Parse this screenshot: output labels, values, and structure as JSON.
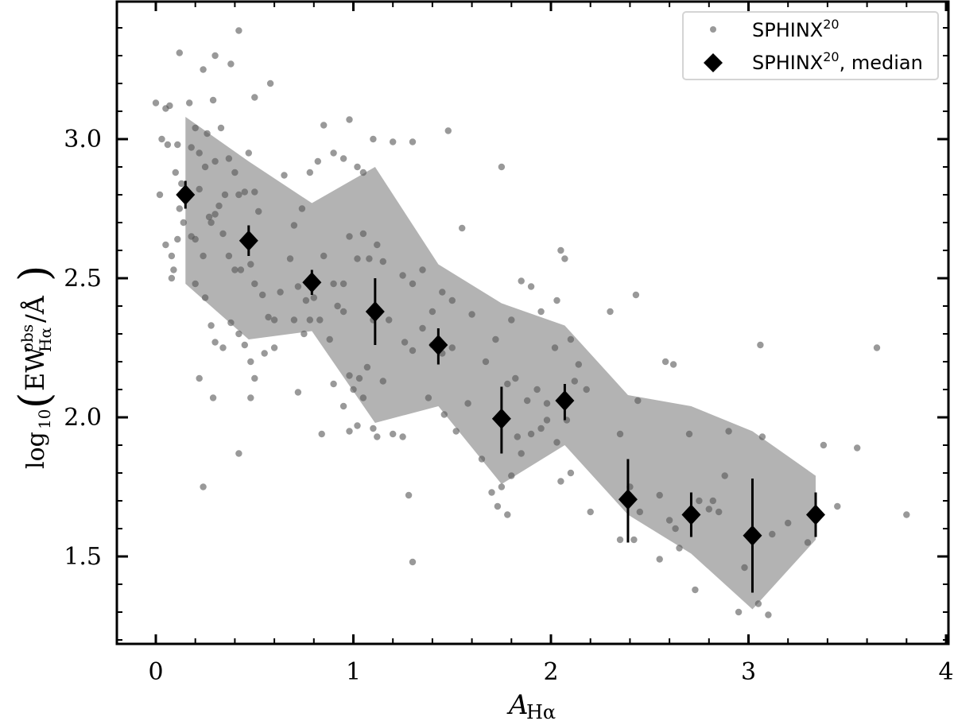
{
  "chart_data": {
    "type": "scatter",
    "title": "",
    "xlabel": "A_Hα",
    "ylabel": "log10(EW^obs_Hα / Å)",
    "xlim": [
      -0.2,
      4.0
    ],
    "ylim": [
      1.19,
      3.5
    ],
    "xticks": [
      0,
      1,
      2,
      3,
      4
    ],
    "xtick_labels": [
      "0",
      "1",
      "2",
      "3",
      "4"
    ],
    "yticks": [
      1.5,
      2.0,
      2.5,
      3.0
    ],
    "ytick_labels": [
      "1.5",
      "2.0",
      "2.5",
      "3.0"
    ],
    "grid": false,
    "legend_position": "upper right",
    "legend": [
      {
        "label": "SPHINX",
        "sup": "20",
        "suffix": "",
        "marker": "dot",
        "color": "#808080"
      },
      {
        "label": "SPHINX",
        "sup": "20",
        "suffix": ", median",
        "marker": "diamond",
        "color": "#000000"
      }
    ],
    "series": [
      {
        "name": "SPHINX20 median",
        "marker": "diamond",
        "color": "#000000",
        "x": [
          0.15,
          0.47,
          0.79,
          1.11,
          1.43,
          1.75,
          2.07,
          2.39,
          2.71,
          3.02,
          3.34
        ],
        "y": [
          2.8,
          2.635,
          2.485,
          2.38,
          2.26,
          1.995,
          2.06,
          1.705,
          1.65,
          1.575,
          1.65
        ],
        "yerr_low": [
          2.75,
          2.58,
          2.44,
          2.26,
          2.19,
          1.87,
          1.99,
          1.55,
          1.57,
          1.37,
          1.57
        ],
        "yerr_high": [
          2.85,
          2.69,
          2.53,
          2.5,
          2.32,
          2.11,
          2.12,
          1.85,
          1.73,
          1.78,
          1.73
        ]
      },
      {
        "name": "SPHINX20 percentile band",
        "type": "area",
        "color": "#b3b3b3",
        "x": [
          0.15,
          0.47,
          0.79,
          1.11,
          1.43,
          1.75,
          2.07,
          2.39,
          2.71,
          3.02,
          3.34
        ],
        "upper": [
          3.08,
          2.92,
          2.77,
          2.9,
          2.55,
          2.41,
          2.33,
          2.08,
          2.04,
          1.95,
          1.79
        ],
        "lower": [
          2.48,
          2.28,
          2.31,
          1.98,
          2.04,
          1.76,
          1.9,
          1.65,
          1.51,
          1.31,
          1.56
        ]
      },
      {
        "name": "SPHINX20",
        "marker": "dot",
        "color": "#808080",
        "points": [
          [
            0.0,
            3.13
          ],
          [
            0.05,
            3.11
          ],
          [
            0.03,
            3.0
          ],
          [
            0.07,
            3.12
          ],
          [
            0.12,
            3.31
          ],
          [
            0.17,
            3.13
          ],
          [
            0.3,
            3.3
          ],
          [
            0.38,
            3.27
          ],
          [
            0.42,
            3.39
          ],
          [
            0.58,
            3.2
          ],
          [
            0.5,
            3.15
          ],
          [
            0.29,
            3.14
          ],
          [
            0.24,
            3.25
          ],
          [
            0.02,
            2.8
          ],
          [
            0.06,
            2.98
          ],
          [
            0.08,
            2.5
          ],
          [
            0.09,
            2.53
          ],
          [
            0.1,
            2.88
          ],
          [
            0.11,
            2.98
          ],
          [
            0.12,
            2.75
          ],
          [
            0.13,
            2.84
          ],
          [
            0.14,
            2.7
          ],
          [
            0.05,
            2.62
          ],
          [
            0.08,
            2.58
          ],
          [
            0.11,
            2.64
          ],
          [
            0.18,
            2.97
          ],
          [
            0.2,
            3.04
          ],
          [
            0.22,
            2.95
          ],
          [
            0.25,
            2.9
          ],
          [
            0.26,
            3.02
          ],
          [
            0.3,
            2.92
          ],
          [
            0.33,
            3.04
          ],
          [
            0.37,
            2.93
          ],
          [
            0.4,
            2.88
          ],
          [
            0.22,
            2.82
          ],
          [
            0.27,
            2.72
          ],
          [
            0.32,
            2.76
          ],
          [
            0.35,
            2.8
          ],
          [
            0.42,
            2.8
          ],
          [
            0.45,
            2.81
          ],
          [
            0.47,
            2.95
          ],
          [
            0.5,
            2.81
          ],
          [
            0.52,
            2.74
          ],
          [
            0.18,
            2.65
          ],
          [
            0.2,
            2.64
          ],
          [
            0.24,
            2.58
          ],
          [
            0.28,
            2.7
          ],
          [
            0.3,
            2.73
          ],
          [
            0.34,
            2.66
          ],
          [
            0.37,
            2.58
          ],
          [
            0.4,
            2.53
          ],
          [
            0.43,
            2.53
          ],
          [
            0.48,
            2.55
          ],
          [
            0.5,
            2.48
          ],
          [
            0.54,
            2.44
          ],
          [
            0.57,
            2.36
          ],
          [
            0.6,
            2.35
          ],
          [
            0.63,
            2.45
          ],
          [
            0.2,
            2.48
          ],
          [
            0.25,
            2.43
          ],
          [
            0.28,
            2.33
          ],
          [
            0.3,
            2.27
          ],
          [
            0.34,
            2.25
          ],
          [
            0.38,
            2.34
          ],
          [
            0.42,
            2.3
          ],
          [
            0.45,
            2.26
          ],
          [
            0.48,
            2.2
          ],
          [
            0.5,
            2.14
          ],
          [
            0.55,
            2.23
          ],
          [
            0.6,
            2.25
          ],
          [
            0.22,
            2.14
          ],
          [
            0.29,
            2.07
          ],
          [
            0.48,
            2.07
          ],
          [
            0.24,
            1.75
          ],
          [
            0.42,
            1.87
          ],
          [
            0.65,
            2.87
          ],
          [
            0.7,
            2.69
          ],
          [
            0.74,
            2.75
          ],
          [
            0.78,
            2.88
          ],
          [
            0.82,
            2.92
          ],
          [
            0.85,
            3.05
          ],
          [
            0.9,
            2.95
          ],
          [
            0.95,
            2.93
          ],
          [
            0.98,
            3.07
          ],
          [
            1.02,
            2.9
          ],
          [
            1.05,
            2.88
          ],
          [
            1.1,
            3.0
          ],
          [
            1.2,
            2.99
          ],
          [
            1.3,
            2.99
          ],
          [
            1.48,
            3.03
          ],
          [
            0.68,
            2.57
          ],
          [
            0.72,
            2.47
          ],
          [
            0.76,
            2.42
          ],
          [
            0.8,
            2.43
          ],
          [
            0.85,
            2.58
          ],
          [
            0.9,
            2.48
          ],
          [
            0.95,
            2.48
          ],
          [
            0.98,
            2.65
          ],
          [
            1.02,
            2.57
          ],
          [
            1.05,
            2.66
          ],
          [
            1.08,
            2.57
          ],
          [
            1.12,
            2.62
          ],
          [
            1.15,
            2.56
          ],
          [
            0.7,
            2.35
          ],
          [
            0.75,
            2.3
          ],
          [
            0.78,
            2.35
          ],
          [
            0.83,
            2.35
          ],
          [
            0.88,
            2.28
          ],
          [
            0.92,
            2.4
          ],
          [
            0.95,
            2.38
          ],
          [
            0.98,
            2.15
          ],
          [
            1.0,
            2.1
          ],
          [
            1.03,
            2.14
          ],
          [
            1.07,
            2.18
          ],
          [
            1.1,
            2.35
          ],
          [
            1.15,
            2.13
          ],
          [
            1.18,
            2.35
          ],
          [
            0.72,
            2.09
          ],
          [
            0.84,
            1.94
          ],
          [
            0.9,
            2.12
          ],
          [
            0.95,
            2.04
          ],
          [
            0.98,
            1.95
          ],
          [
            1.02,
            1.97
          ],
          [
            1.05,
            2.07
          ],
          [
            1.1,
            1.96
          ],
          [
            1.12,
            1.93
          ],
          [
            1.2,
            1.94
          ],
          [
            1.25,
            1.93
          ],
          [
            1.28,
            1.72
          ],
          [
            1.3,
            1.48
          ],
          [
            1.25,
            2.51
          ],
          [
            1.3,
            2.48
          ],
          [
            1.35,
            2.53
          ],
          [
            1.4,
            2.38
          ],
          [
            1.45,
            2.45
          ],
          [
            1.5,
            2.42
          ],
          [
            1.55,
            2.68
          ],
          [
            1.6,
            2.37
          ],
          [
            1.26,
            2.27
          ],
          [
            1.3,
            2.24
          ],
          [
            1.35,
            2.32
          ],
          [
            1.4,
            2.26
          ],
          [
            1.45,
            2.23
          ],
          [
            1.5,
            2.25
          ],
          [
            1.38,
            2.07
          ],
          [
            1.46,
            2.01
          ],
          [
            1.52,
            1.95
          ],
          [
            1.58,
            2.05
          ],
          [
            1.67,
            2.2
          ],
          [
            1.72,
            2.28
          ],
          [
            1.75,
            2.9
          ],
          [
            1.8,
            2.35
          ],
          [
            1.85,
            2.49
          ],
          [
            1.9,
            2.47
          ],
          [
            1.95,
            2.38
          ],
          [
            2.03,
            2.42
          ],
          [
            2.07,
            2.57
          ],
          [
            2.05,
            2.6
          ],
          [
            1.78,
            2.12
          ],
          [
            1.82,
            2.14
          ],
          [
            1.88,
            2.06
          ],
          [
            1.93,
            2.1
          ],
          [
            1.98,
            2.05
          ],
          [
            2.02,
            2.25
          ],
          [
            2.1,
            2.28
          ],
          [
            2.14,
            2.19
          ],
          [
            2.18,
            2.1
          ],
          [
            1.7,
            1.73
          ],
          [
            1.75,
            1.75
          ],
          [
            1.8,
            1.79
          ],
          [
            1.83,
            1.93
          ],
          [
            1.85,
            1.87
          ],
          [
            1.9,
            1.94
          ],
          [
            1.95,
            1.96
          ],
          [
            1.98,
            1.99
          ],
          [
            2.03,
            1.91
          ],
          [
            2.05,
            1.77
          ],
          [
            2.08,
            1.99
          ],
          [
            2.1,
            1.8
          ],
          [
            1.73,
            1.68
          ],
          [
            1.78,
            1.65
          ],
          [
            2.2,
            1.66
          ],
          [
            2.35,
            1.56
          ],
          [
            1.65,
            1.85
          ],
          [
            2.12,
            2.13
          ],
          [
            2.43,
            2.44
          ],
          [
            2.44,
            2.06
          ],
          [
            2.3,
            2.38
          ],
          [
            2.35,
            1.94
          ],
          [
            2.4,
            1.75
          ],
          [
            2.42,
            1.56
          ],
          [
            2.45,
            1.66
          ],
          [
            2.55,
            1.72
          ],
          [
            2.6,
            1.63
          ],
          [
            2.63,
            1.6
          ],
          [
            2.65,
            1.53
          ],
          [
            2.7,
            1.94
          ],
          [
            2.73,
            1.38
          ],
          [
            2.75,
            1.7
          ],
          [
            2.8,
            1.67
          ],
          [
            2.82,
            1.7
          ],
          [
            2.85,
            1.66
          ],
          [
            2.88,
            1.79
          ],
          [
            2.58,
            2.2
          ],
          [
            2.62,
            2.19
          ],
          [
            2.55,
            1.49
          ],
          [
            2.9,
            1.95
          ],
          [
            2.95,
            1.3
          ],
          [
            2.98,
            1.46
          ],
          [
            3.05,
            1.33
          ],
          [
            3.07,
            1.93
          ],
          [
            3.1,
            1.29
          ],
          [
            3.12,
            1.58
          ],
          [
            3.2,
            1.62
          ],
          [
            3.3,
            1.55
          ],
          [
            3.06,
            2.26
          ],
          [
            3.38,
            1.9
          ],
          [
            3.45,
            1.68
          ],
          [
            3.55,
            1.89
          ],
          [
            3.65,
            2.25
          ],
          [
            3.8,
            1.65
          ]
        ]
      }
    ]
  }
}
